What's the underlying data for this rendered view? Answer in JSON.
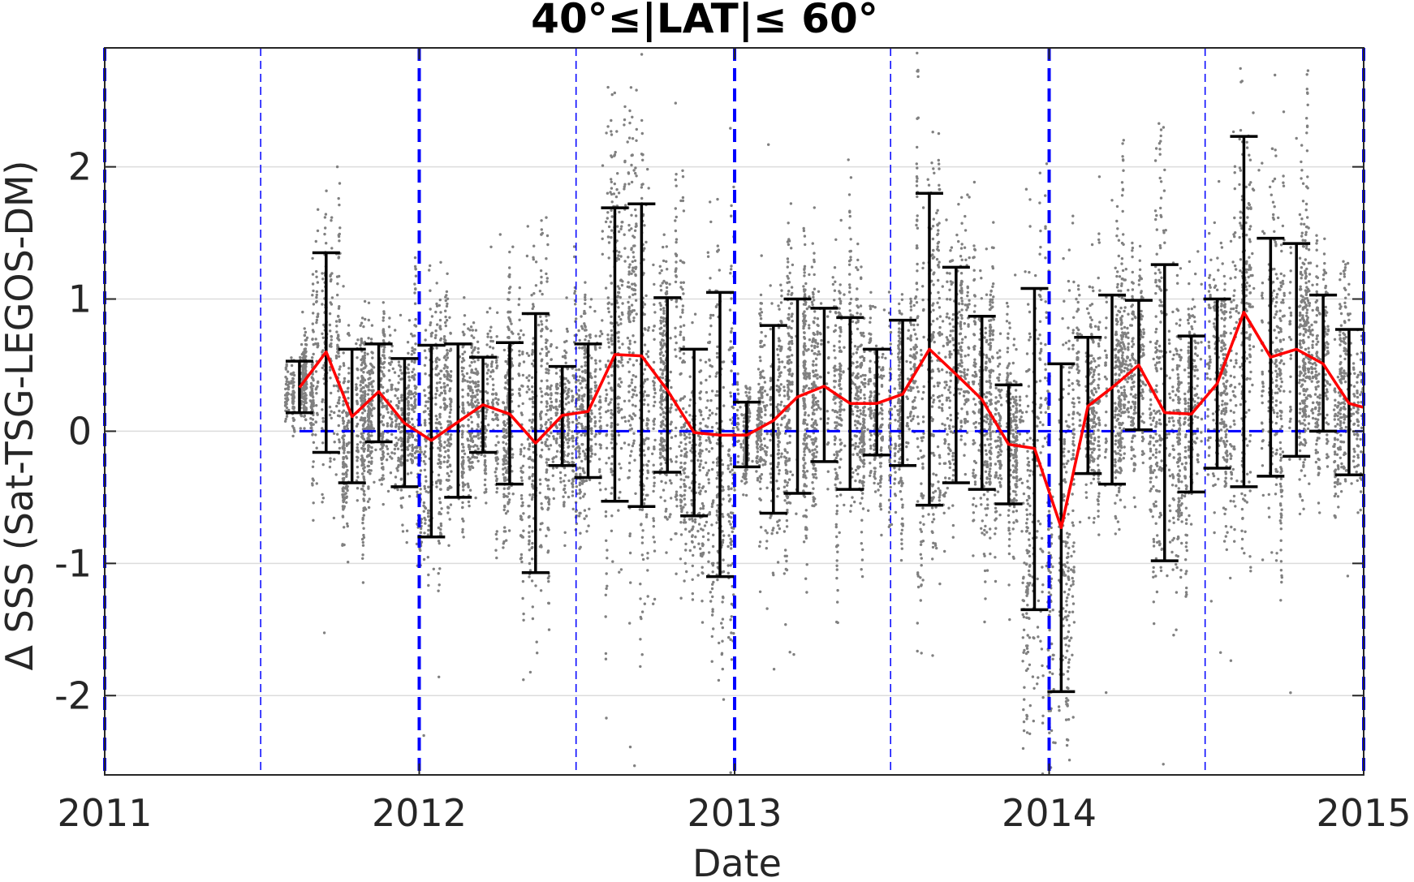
{
  "chart_data": {
    "type": "scatter",
    "title": "40°≤|LAT|≤ 60°",
    "xlabel": "Date",
    "ylabel": "Δ SSS (Sat-TSG-LEGOS-DM)",
    "xlim": [
      "2011-01-01",
      "2015-01-01"
    ],
    "ylim": [
      -2.6,
      2.9
    ],
    "x_ticks": [
      "2011",
      "2012",
      "2013",
      "2014",
      "2015"
    ],
    "y_ticks": [
      -2,
      -1,
      0,
      1,
      2
    ],
    "y_tick_labels": [
      "-2",
      "-1",
      "0",
      "1",
      "2"
    ],
    "grid": "horizontal",
    "colors": {
      "scatter": "#808080",
      "mean_line": "#ff0000",
      "error_bars": "#000000",
      "reference_lines": "#0000ff",
      "grid": "#dcdcdc"
    },
    "vertical_reference_lines": {
      "thick": [
        "2011-01-01",
        "2012-01-01",
        "2013-01-01",
        "2014-01-01",
        "2015-01-01"
      ],
      "thin": [
        "2011-07-01",
        "2012-07-01",
        "2013-07-01",
        "2014-07-01"
      ]
    },
    "zero_reference_line": {
      "y": 0,
      "from": "2011-08-15",
      "to": "2015-01-01"
    },
    "monthly_mean": {
      "x": [
        "2011-08-15",
        "2011-09-15",
        "2011-10-15",
        "2011-11-15",
        "2011-12-15",
        "2012-01-15",
        "2012-02-15",
        "2012-03-15",
        "2012-04-15",
        "2012-05-15",
        "2012-06-15",
        "2012-07-15",
        "2012-08-15",
        "2012-09-15",
        "2012-10-15",
        "2012-11-15",
        "2012-12-15",
        "2013-01-15",
        "2013-02-15",
        "2013-03-15",
        "2013-04-15",
        "2013-05-15",
        "2013-06-15",
        "2013-07-15",
        "2013-08-15",
        "2013-09-15",
        "2013-10-15",
        "2013-11-15",
        "2013-12-15",
        "2014-01-15",
        "2014-02-15",
        "2014-03-15",
        "2014-04-15",
        "2014-05-15",
        "2014-06-15",
        "2014-07-15",
        "2014-08-15",
        "2014-09-15",
        "2014-10-15",
        "2014-11-15",
        "2014-12-15",
        "2015-01-01"
      ],
      "y": [
        0.33,
        0.6,
        0.11,
        0.3,
        0.06,
        -0.07,
        0.07,
        0.2,
        0.13,
        -0.09,
        0.12,
        0.15,
        0.58,
        0.57,
        0.31,
        -0.01,
        -0.03,
        -0.03,
        0.08,
        0.26,
        0.34,
        0.21,
        0.21,
        0.28,
        0.62,
        0.43,
        0.24,
        -0.1,
        -0.13,
        -0.73,
        0.19,
        0.33,
        0.5,
        0.14,
        0.13,
        0.36,
        0.9,
        0.56,
        0.62,
        0.51,
        0.21,
        0.18
      ]
    },
    "error_bars": [
      {
        "x": "2011-08-15",
        "low": 0.14,
        "high": 0.53
      },
      {
        "x": "2011-09-15",
        "low": -0.16,
        "high": 1.35
      },
      {
        "x": "2011-10-15",
        "low": -0.39,
        "high": 0.62
      },
      {
        "x": "2011-11-15",
        "low": -0.08,
        "high": 0.66
      },
      {
        "x": "2011-12-15",
        "low": -0.42,
        "high": 0.55
      },
      {
        "x": "2012-01-15",
        "low": -0.8,
        "high": 0.65
      },
      {
        "x": "2012-02-15",
        "low": -0.5,
        "high": 0.66
      },
      {
        "x": "2012-03-15",
        "low": -0.16,
        "high": 0.56
      },
      {
        "x": "2012-04-15",
        "low": -0.4,
        "high": 0.67
      },
      {
        "x": "2012-05-15",
        "low": -1.07,
        "high": 0.89
      },
      {
        "x": "2012-06-15",
        "low": -0.26,
        "high": 0.49
      },
      {
        "x": "2012-07-15",
        "low": -0.35,
        "high": 0.66
      },
      {
        "x": "2012-08-15",
        "low": -0.53,
        "high": 1.69
      },
      {
        "x": "2012-09-15",
        "low": -0.57,
        "high": 1.72
      },
      {
        "x": "2012-10-15",
        "low": -0.31,
        "high": 1.01
      },
      {
        "x": "2012-11-15",
        "low": -0.64,
        "high": 0.62
      },
      {
        "x": "2012-12-15",
        "low": -1.1,
        "high": 1.05
      },
      {
        "x": "2013-01-15",
        "low": -0.27,
        "high": 0.22
      },
      {
        "x": "2013-02-15",
        "low": -0.62,
        "high": 0.8
      },
      {
        "x": "2013-03-15",
        "low": -0.47,
        "high": 1.0
      },
      {
        "x": "2013-04-15",
        "low": -0.23,
        "high": 0.93
      },
      {
        "x": "2013-05-15",
        "low": -0.44,
        "high": 0.86
      },
      {
        "x": "2013-06-15",
        "low": -0.18,
        "high": 0.62
      },
      {
        "x": "2013-07-15",
        "low": -0.26,
        "high": 0.84
      },
      {
        "x": "2013-08-15",
        "low": -0.56,
        "high": 1.8
      },
      {
        "x": "2013-09-15",
        "low": -0.39,
        "high": 1.24
      },
      {
        "x": "2013-10-15",
        "low": -0.44,
        "high": 0.87
      },
      {
        "x": "2013-11-15",
        "low": -0.55,
        "high": 0.35
      },
      {
        "x": "2013-12-15",
        "low": -1.35,
        "high": 1.08
      },
      {
        "x": "2014-01-15",
        "low": -1.97,
        "high": 0.51
      },
      {
        "x": "2014-02-15",
        "low": -0.32,
        "high": 0.71
      },
      {
        "x": "2014-03-15",
        "low": -0.4,
        "high": 1.03
      },
      {
        "x": "2014-04-15",
        "low": 0.01,
        "high": 0.99
      },
      {
        "x": "2014-05-15",
        "low": -0.98,
        "high": 1.26
      },
      {
        "x": "2014-06-15",
        "low": -0.46,
        "high": 0.72
      },
      {
        "x": "2014-07-15",
        "low": -0.28,
        "high": 1.0
      },
      {
        "x": "2014-08-15",
        "low": -0.42,
        "high": 2.23
      },
      {
        "x": "2014-09-15",
        "low": -0.34,
        "high": 1.46
      },
      {
        "x": "2014-10-15",
        "low": -0.19,
        "high": 1.42
      },
      {
        "x": "2014-11-15",
        "low": 0.0,
        "high": 1.03
      },
      {
        "x": "2014-12-15",
        "low": -0.33,
        "high": 0.77
      }
    ],
    "scatter_density": "dense grey points per cruise day, spanning roughly -2.5 to 2.9 around the monthly means"
  }
}
